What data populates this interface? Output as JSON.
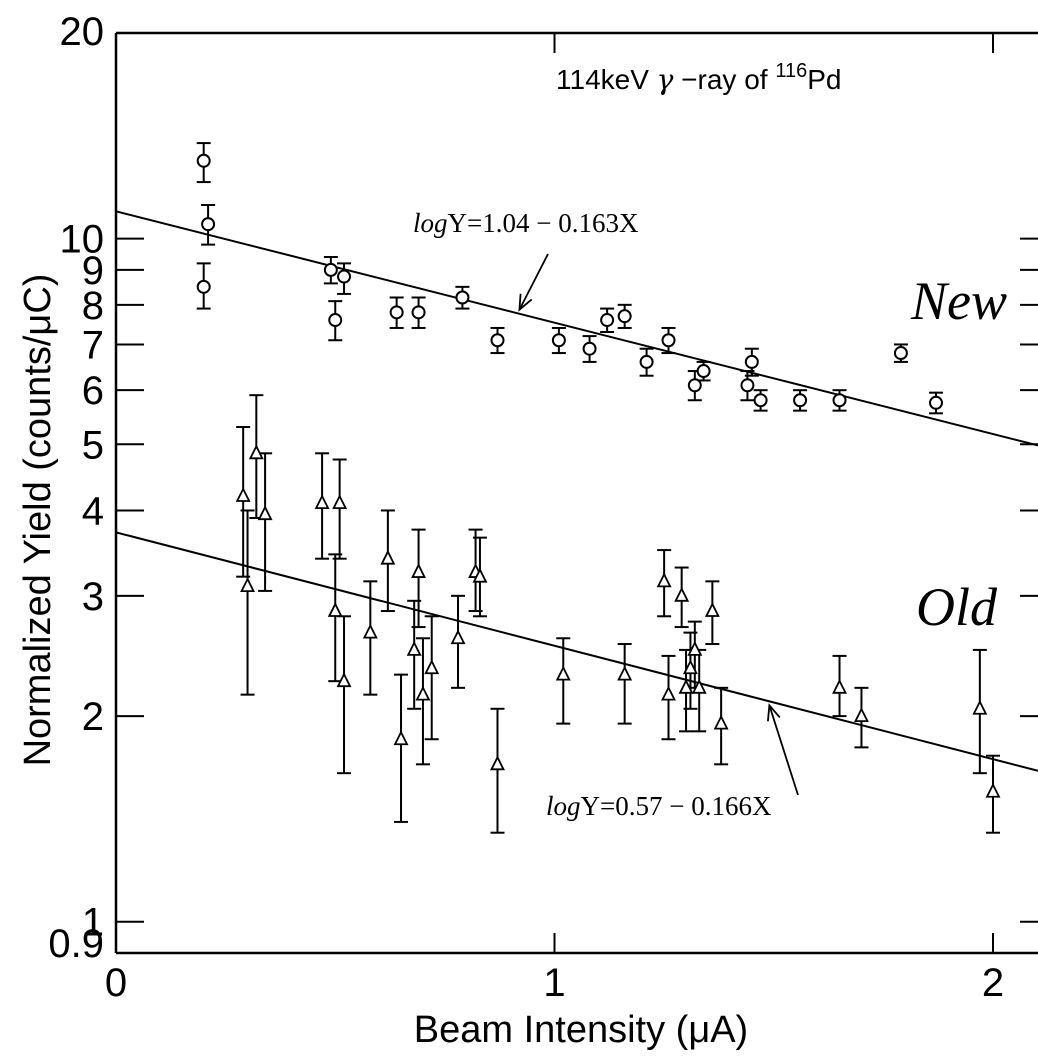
{
  "chart_data": {
    "type": "scatter",
    "title": {
      "prefix": "114keV ",
      "greek": "γ",
      "middle": " −ray of ",
      "sup": "116",
      "suffix": "Pd"
    },
    "xlabel": "Beam  Intensity  (μA)",
    "ylabel": "Normalized  Yield  (counts/μC)",
    "x_scale": "linear",
    "y_scale": "log",
    "xlim": [
      0,
      2.1
    ],
    "ylim": [
      0.9,
      20
    ],
    "x_ticks": [
      {
        "value": 0,
        "label": "0"
      },
      {
        "value": 1,
        "label": "1"
      },
      {
        "value": 2,
        "label": "2"
      }
    ],
    "y_ticks": [
      {
        "value": 0.9,
        "label": "0.9"
      },
      {
        "value": 1,
        "label": "1"
      },
      {
        "value": 2,
        "label": "2"
      },
      {
        "value": 3,
        "label": "3"
      },
      {
        "value": 4,
        "label": "4"
      },
      {
        "value": 5,
        "label": "5"
      },
      {
        "value": 6,
        "label": "6"
      },
      {
        "value": 7,
        "label": "7"
      },
      {
        "value": 8,
        "label": "8"
      },
      {
        "value": 9,
        "label": "9"
      },
      {
        "value": 10,
        "label": "10"
      },
      {
        "value": 20,
        "label": "20"
      }
    ],
    "grid": false,
    "series": [
      {
        "name": "New",
        "marker": "circle",
        "fit": {
          "intercept": 1.04,
          "slope": -0.163,
          "label_prefix": "log",
          "label_rest": "Y=1.04 − 0.163X"
        },
        "points": [
          {
            "x": 0.2,
            "y": 13.0,
            "lo": 12.1,
            "hi": 13.8
          },
          {
            "x": 0.21,
            "y": 10.5,
            "lo": 9.8,
            "hi": 11.2
          },
          {
            "x": 0.2,
            "y": 8.5,
            "lo": 7.9,
            "hi": 9.2
          },
          {
            "x": 0.49,
            "y": 9.0,
            "lo": 8.6,
            "hi": 9.4
          },
          {
            "x": 0.52,
            "y": 8.8,
            "lo": 8.3,
            "hi": 9.2
          },
          {
            "x": 0.5,
            "y": 7.6,
            "lo": 7.1,
            "hi": 8.1
          },
          {
            "x": 0.64,
            "y": 7.8,
            "lo": 7.4,
            "hi": 8.2
          },
          {
            "x": 0.69,
            "y": 7.8,
            "lo": 7.4,
            "hi": 8.2
          },
          {
            "x": 0.79,
            "y": 8.2,
            "lo": 7.9,
            "hi": 8.5
          },
          {
            "x": 0.87,
            "y": 7.1,
            "lo": 6.8,
            "hi": 7.4
          },
          {
            "x": 1.01,
            "y": 7.1,
            "lo": 6.8,
            "hi": 7.4
          },
          {
            "x": 1.08,
            "y": 6.9,
            "lo": 6.6,
            "hi": 7.2
          },
          {
            "x": 1.12,
            "y": 7.6,
            "lo": 7.3,
            "hi": 7.9
          },
          {
            "x": 1.16,
            "y": 7.7,
            "lo": 7.4,
            "hi": 8.0
          },
          {
            "x": 1.21,
            "y": 6.6,
            "lo": 6.3,
            "hi": 6.9
          },
          {
            "x": 1.26,
            "y": 7.1,
            "lo": 6.8,
            "hi": 7.4
          },
          {
            "x": 1.32,
            "y": 6.1,
            "lo": 5.8,
            "hi": 6.4
          },
          {
            "x": 1.34,
            "y": 6.4,
            "lo": 6.2,
            "hi": 6.6
          },
          {
            "x": 1.44,
            "y": 6.1,
            "lo": 5.8,
            "hi": 6.4
          },
          {
            "x": 1.45,
            "y": 6.6,
            "lo": 6.3,
            "hi": 6.9
          },
          {
            "x": 1.47,
            "y": 5.8,
            "lo": 5.6,
            "hi": 6.0
          },
          {
            "x": 1.56,
            "y": 5.8,
            "lo": 5.6,
            "hi": 6.0
          },
          {
            "x": 1.65,
            "y": 5.8,
            "lo": 5.6,
            "hi": 6.0
          },
          {
            "x": 1.79,
            "y": 6.8,
            "lo": 6.6,
            "hi": 7.0
          },
          {
            "x": 1.87,
            "y": 5.75,
            "lo": 5.55,
            "hi": 5.95
          }
        ]
      },
      {
        "name": "Old",
        "marker": "triangle",
        "fit": {
          "intercept": 0.57,
          "slope": -0.166,
          "label_prefix": "log",
          "label_rest": "Y=0.57 − 0.166X"
        },
        "points": [
          {
            "x": 0.29,
            "y": 4.2,
            "lo": 3.2,
            "hi": 5.3
          },
          {
            "x": 0.3,
            "y": 3.1,
            "lo": 2.15,
            "hi": 4.0
          },
          {
            "x": 0.32,
            "y": 4.85,
            "lo": 3.9,
            "hi": 5.9
          },
          {
            "x": 0.34,
            "y": 3.95,
            "lo": 3.05,
            "hi": 4.85
          },
          {
            "x": 0.47,
            "y": 4.1,
            "lo": 3.4,
            "hi": 4.85
          },
          {
            "x": 0.51,
            "y": 4.1,
            "lo": 3.4,
            "hi": 4.75
          },
          {
            "x": 0.5,
            "y": 2.85,
            "lo": 2.25,
            "hi": 3.45
          },
          {
            "x": 0.52,
            "y": 2.25,
            "lo": 1.65,
            "hi": 2.8
          },
          {
            "x": 0.58,
            "y": 2.65,
            "lo": 2.15,
            "hi": 3.15
          },
          {
            "x": 0.62,
            "y": 3.4,
            "lo": 2.85,
            "hi": 4.0
          },
          {
            "x": 0.65,
            "y": 1.85,
            "lo": 1.4,
            "hi": 2.3
          },
          {
            "x": 0.68,
            "y": 2.5,
            "lo": 2.05,
            "hi": 2.95
          },
          {
            "x": 0.69,
            "y": 3.25,
            "lo": 2.7,
            "hi": 3.75
          },
          {
            "x": 0.7,
            "y": 2.15,
            "lo": 1.7,
            "hi": 2.6
          },
          {
            "x": 0.72,
            "y": 2.35,
            "lo": 1.85,
            "hi": 2.8
          },
          {
            "x": 0.78,
            "y": 2.6,
            "lo": 2.2,
            "hi": 3.0
          },
          {
            "x": 0.82,
            "y": 3.25,
            "lo": 2.85,
            "hi": 3.75
          },
          {
            "x": 0.83,
            "y": 3.2,
            "lo": 2.8,
            "hi": 3.65
          },
          {
            "x": 0.87,
            "y": 1.7,
            "lo": 1.35,
            "hi": 2.05
          },
          {
            "x": 1.02,
            "y": 2.3,
            "lo": 1.95,
            "hi": 2.6
          },
          {
            "x": 1.16,
            "y": 2.3,
            "lo": 1.95,
            "hi": 2.55
          },
          {
            "x": 1.25,
            "y": 3.15,
            "lo": 2.8,
            "hi": 3.5
          },
          {
            "x": 1.26,
            "y": 2.15,
            "lo": 1.85,
            "hi": 2.45
          },
          {
            "x": 1.29,
            "y": 3.0,
            "lo": 2.7,
            "hi": 3.3
          },
          {
            "x": 1.3,
            "y": 2.2,
            "lo": 1.9,
            "hi": 2.5
          },
          {
            "x": 1.31,
            "y": 2.35,
            "lo": 2.05,
            "hi": 2.65
          },
          {
            "x": 1.32,
            "y": 2.5,
            "lo": 2.2,
            "hi": 2.75
          },
          {
            "x": 1.33,
            "y": 2.2,
            "lo": 1.9,
            "hi": 2.5
          },
          {
            "x": 1.36,
            "y": 2.85,
            "lo": 2.55,
            "hi": 3.15
          },
          {
            "x": 1.38,
            "y": 1.95,
            "lo": 1.7,
            "hi": 2.2
          },
          {
            "x": 1.65,
            "y": 2.2,
            "lo": 2.0,
            "hi": 2.45
          },
          {
            "x": 1.7,
            "y": 2.0,
            "lo": 1.8,
            "hi": 2.2
          },
          {
            "x": 1.97,
            "y": 2.05,
            "lo": 1.65,
            "hi": 2.5
          },
          {
            "x": 2.0,
            "y": 1.55,
            "lo": 1.35,
            "hi": 1.75
          }
        ]
      }
    ]
  }
}
